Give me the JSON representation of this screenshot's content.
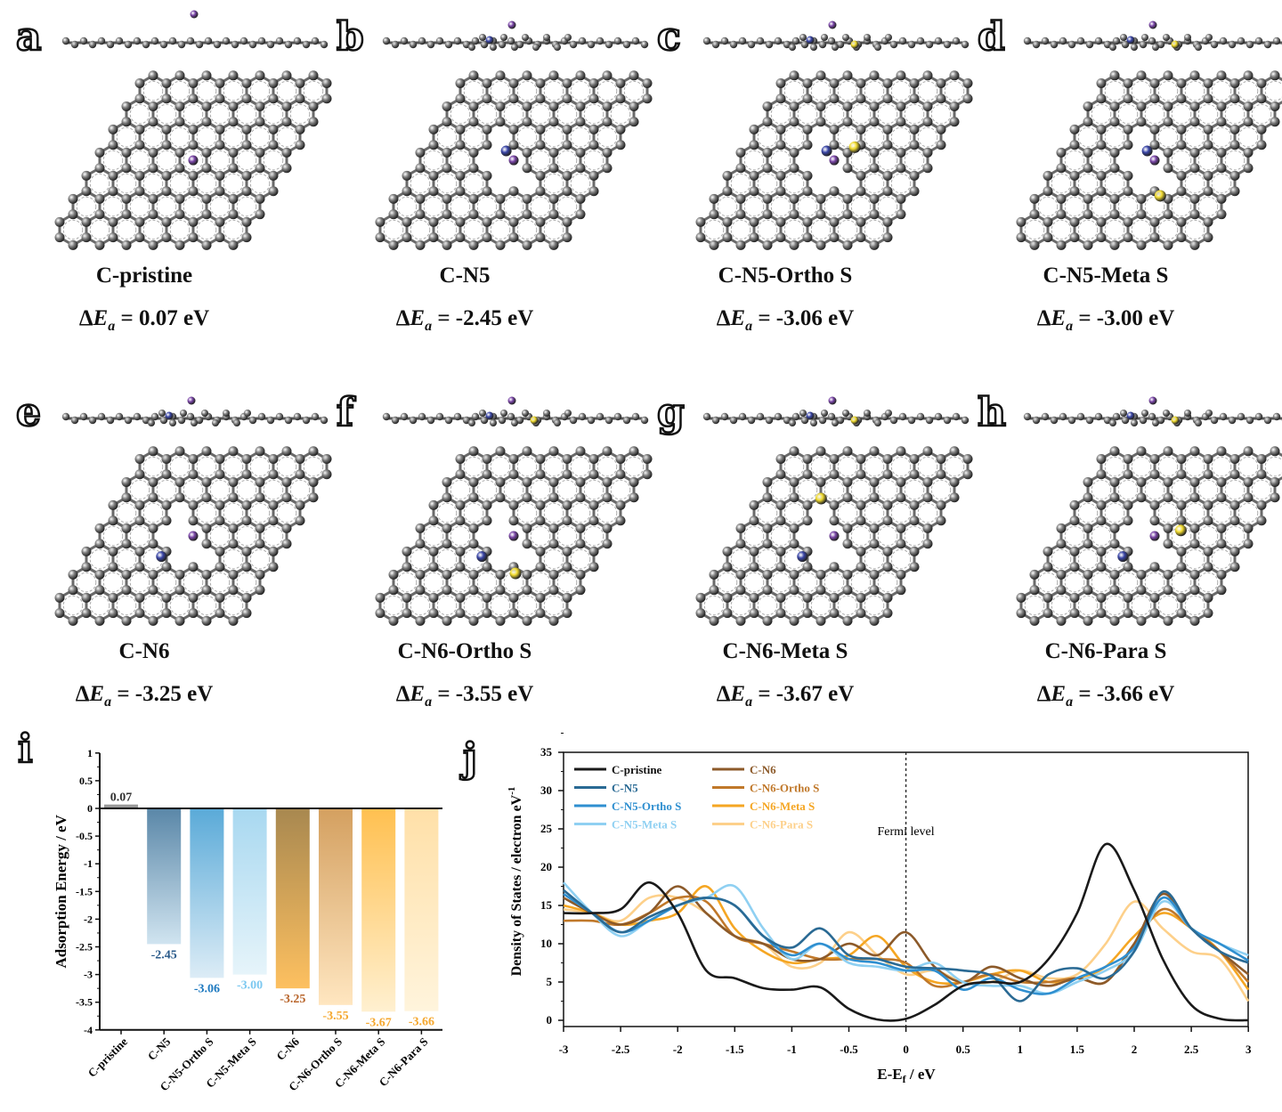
{
  "panels": [
    {
      "letter": "a",
      "name": "C-pristine",
      "delta_prefix": "ΔE",
      "delta_sub": "a",
      "delta_value": "= 0.07 eV",
      "vacancy": false,
      "n": [],
      "s": []
    },
    {
      "letter": "b",
      "name": "C-N5",
      "delta_prefix": "ΔE",
      "delta_sub": "a",
      "delta_value": "= -2.45 eV",
      "vacancy": true,
      "n": [
        "n5"
      ],
      "s": []
    },
    {
      "letter": "c",
      "name": "C-N5-Ortho S",
      "delta_prefix": "ΔE",
      "delta_sub": "a",
      "delta_value": "= -3.06 eV",
      "vacancy": true,
      "n": [
        "n5"
      ],
      "s": [
        "ortho5"
      ]
    },
    {
      "letter": "d",
      "name": "C-N5-Meta S",
      "delta_prefix": "ΔE",
      "delta_sub": "a",
      "delta_value": "= -3.00 eV",
      "vacancy": true,
      "n": [
        "n5"
      ],
      "s": [
        "meta5"
      ]
    },
    {
      "letter": "e",
      "name": "C-N6",
      "delta_prefix": "ΔE",
      "delta_sub": "a",
      "delta_value": "= -3.25 eV",
      "vacancy": true,
      "n": [
        "n6"
      ],
      "s": []
    },
    {
      "letter": "f",
      "name": "C-N6-Ortho S",
      "delta_prefix": "ΔE",
      "delta_sub": "a",
      "delta_value": "= -3.55 eV",
      "vacancy": true,
      "n": [
        "n6"
      ],
      "s": [
        "ortho6"
      ]
    },
    {
      "letter": "g",
      "name": "C-N6-Meta S",
      "delta_prefix": "ΔE",
      "delta_sub": "a",
      "delta_value": "= -3.67 eV",
      "vacancy": true,
      "n": [
        "n6"
      ],
      "s": [
        "meta6"
      ]
    },
    {
      "letter": "h",
      "name": "C-N6-Para S",
      "delta_prefix": "ΔE",
      "delta_sub": "a",
      "delta_value": "= -3.66 eV",
      "vacancy": true,
      "n": [
        "n6"
      ],
      "s": [
        "para6"
      ]
    }
  ],
  "atom_colors": {
    "carbon": "#808080",
    "nitrogen": "#3a46a8",
    "sulfur": "#f2dc30",
    "metal": "#7a45a8"
  },
  "chart_data": [
    {
      "panel": "i",
      "type": "bar",
      "ylabel": "Adsorption Energy / eV",
      "xlabel": "",
      "ylim": [
        -4,
        1
      ],
      "yticks": [
        "1",
        "0.5",
        "0",
        "-0.5",
        "-1",
        "-1.5",
        "-2",
        "-2.5",
        "-3",
        "-3.5",
        "-4"
      ],
      "categories": [
        "C-pristine",
        "C-N5",
        "C-N5-Ortho S",
        "C-N5-Meta S",
        "C-N6",
        "C-N6-Ortho S",
        "C-N6-Meta S",
        "C-N6-Para S"
      ],
      "values": [
        0.07,
        -2.45,
        -3.06,
        -3.0,
        -3.25,
        -3.55,
        -3.67,
        -3.66
      ],
      "value_labels": [
        "0.07",
        "-2.45",
        "-3.06",
        "-3.00",
        "-3.25",
        "-3.55",
        "-3.67",
        "-3.66"
      ],
      "label_colors": [
        "#333333",
        "#2a5a8a",
        "#1f7ac0",
        "#7cc8f0",
        "#b8642a",
        "#f5a830",
        "#f5a830",
        "#f5a830"
      ],
      "bar_colors_top": [
        "#888888",
        "#5a87a8",
        "#5aaad8",
        "#a8d8f0",
        "#a88850",
        "#d4a060",
        "#ffc050",
        "#ffe0a8"
      ],
      "bar_colors_bottom": [
        "#888888",
        "#d0e4f0",
        "#dcecf6",
        "#e6f4fa",
        "#fdc060",
        "#ffe6c0",
        "#fff0d0",
        "#fff4dc"
      ]
    },
    {
      "panel": "j",
      "type": "line",
      "xlabel": "E-E",
      "xlabel_sub": "f",
      "xlabel_unit": " / eV",
      "ylabel": "Density of States / electron eV",
      "ylabel_sup": "-1",
      "xlim": [
        -3,
        3
      ],
      "ylim": [
        -1,
        35
      ],
      "xticks": [
        "-3",
        "-2.5",
        "-2",
        "-1.5",
        "-1",
        "-0.5",
        "0",
        "0.5",
        "1",
        "1.5",
        "2",
        "2.5",
        "3"
      ],
      "yticks": [
        "0",
        "5",
        "10",
        "15",
        "20",
        "25",
        "30",
        "35"
      ],
      "annotation": "Fermi level",
      "legend_position": "top-left",
      "x": [
        -3,
        -2.75,
        -2.5,
        -2.25,
        -2,
        -1.75,
        -1.5,
        -1.25,
        -1,
        -0.75,
        -0.5,
        -0.25,
        0,
        0.25,
        0.5,
        0.75,
        1,
        1.25,
        1.5,
        1.75,
        2,
        2.25,
        2.5,
        2.75,
        3
      ],
      "series": [
        {
          "name": "C-pristine",
          "color": "#1a1a1a",
          "values": [
            14,
            14,
            14.5,
            18,
            14,
            6.5,
            5.5,
            4.2,
            4,
            4.3,
            1.5,
            0.1,
            0.2,
            2,
            4.5,
            5,
            5,
            8,
            14,
            23,
            17,
            8,
            2,
            0.2,
            0
          ]
        },
        {
          "name": "C-N5",
          "color": "#2a6a94",
          "values": [
            17,
            14,
            11.5,
            13.5,
            15,
            16,
            15,
            11,
            9.5,
            12,
            8.5,
            8,
            7,
            6.8,
            6.5,
            5.8,
            2.5,
            6,
            6.8,
            5.5,
            9,
            16.8,
            12,
            9,
            7.5
          ]
        },
        {
          "name": "C-N5-Ortho S",
          "color": "#2f8fd0",
          "values": [
            16.5,
            14,
            11.5,
            13,
            15,
            16,
            15,
            11,
            8.5,
            10,
            8,
            7.5,
            6.5,
            6.5,
            4,
            5.5,
            4,
            3.5,
            5.5,
            7,
            9.5,
            16,
            12,
            10,
            7.8
          ]
        },
        {
          "name": "C-N5-Meta S",
          "color": "#8fd0f2",
          "values": [
            18,
            14,
            11,
            13,
            15,
            16,
            17.5,
            12,
            8,
            10,
            7.5,
            7,
            6.5,
            7.5,
            5,
            4.5,
            4.5,
            3.5,
            5,
            6.5,
            9,
            15.5,
            12,
            10,
            8.5
          ]
        },
        {
          "name": "C-N6",
          "color": "#8c5a2a",
          "values": [
            16,
            14,
            12.5,
            14,
            17.5,
            14,
            11,
            10,
            8,
            8,
            10,
            8.5,
            11.5,
            7,
            5,
            7,
            5.5,
            4.5,
            5.5,
            5,
            10,
            16.5,
            12,
            9,
            6
          ]
        },
        {
          "name": "C-N6-Ortho S",
          "color": "#c0782a",
          "values": [
            13,
            13,
            12.5,
            14,
            16,
            15.5,
            11,
            10,
            9,
            8,
            8,
            8,
            7.5,
            4.5,
            5,
            6,
            5,
            5,
            5.5,
            5,
            10,
            14.5,
            12,
            9,
            5
          ]
        },
        {
          "name": "C-N6-Meta S",
          "color": "#f5a623",
          "values": [
            15,
            14,
            12.5,
            13,
            14,
            17.5,
            12,
            9,
            7.5,
            8,
            8.5,
            11,
            7,
            5,
            5,
            6,
            6.5,
            5,
            5.5,
            7,
            11,
            14,
            12,
            9,
            4
          ]
        },
        {
          "name": "C-N6-Para S",
          "color": "#fdd08a",
          "values": [
            14.5,
            14,
            13,
            16,
            16,
            14,
            11,
            10,
            7,
            7.5,
            11.5,
            8.5,
            6,
            6.5,
            5,
            5,
            6.5,
            5.5,
            6,
            10,
            15.5,
            12,
            9,
            8,
            2.5
          ]
        }
      ]
    }
  ],
  "panel_i_letter": "i",
  "panel_j_letter": "j"
}
